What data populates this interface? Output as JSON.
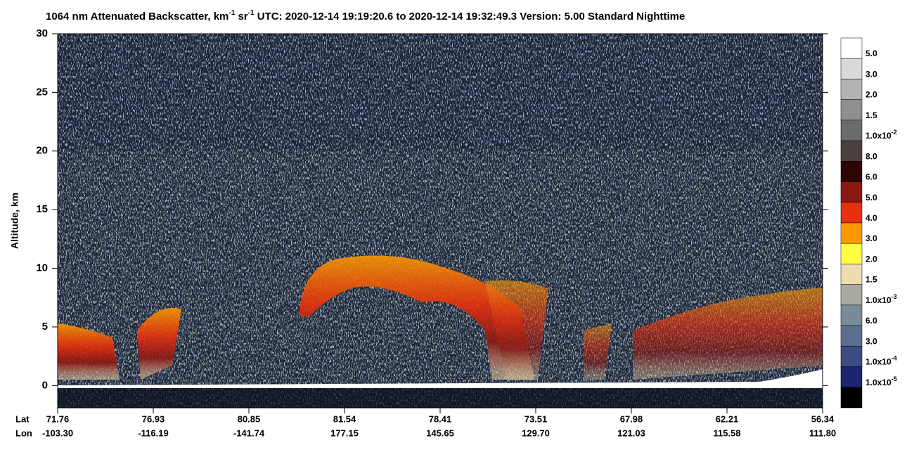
{
  "chart_data": {
    "type": "curtain",
    "title": [
      {
        "text": "1064 nm Attenuated Backscatter, km"
      },
      {
        "sup": "-1"
      },
      {
        "text": " sr"
      },
      {
        "sup": "-1"
      },
      {
        "text": "    UTC:  2020-12-14 19:19:20.6  to  2020-12-14 19:32:49.3    Version: 5.00  Standard  Nighttime"
      }
    ],
    "y_label": "Altitude, km",
    "ylim": [
      -1.9,
      30
    ],
    "yticks": [
      0,
      5,
      10,
      15,
      20,
      25,
      30
    ],
    "x_row_labels": [
      "Lat",
      "Lon"
    ],
    "lat": [
      "71.76",
      "76.93",
      "80.85",
      "81.54",
      "78.41",
      "73.51",
      "67.98",
      "62.21",
      "56.34"
    ],
    "lon": [
      "-103.30",
      "-116.19",
      "-141.74",
      "177.15",
      "145.65",
      "129.70",
      "121.03",
      "115.58",
      "111.80"
    ],
    "colorbar": {
      "colors": [
        "#ffffff",
        "#d9d9d9",
        "#b3b3b3",
        "#8f8f8f",
        "#6b6b6b",
        "#4a403d",
        "#2e0505",
        "#8c1812",
        "#e8300e",
        "#fa9a00",
        "#ffff40",
        "#eedcae",
        "#a9aba1",
        "#7b8a97",
        "#5a6f90",
        "#3a4e84",
        "#1e2470",
        "#000000"
      ],
      "labels": [
        {
          "label": "5.0"
        },
        {
          "label": "3.0"
        },
        {
          "label": "2.0"
        },
        {
          "label": "1.5"
        },
        {
          "label": "1.0x10",
          "exponent": "-2"
        },
        {
          "label": "8.0"
        },
        {
          "label": "6.0"
        },
        {
          "label": "5.0"
        },
        {
          "label": "4.0"
        },
        {
          "label": "3.0"
        },
        {
          "label": "2.0"
        },
        {
          "label": "1.5"
        },
        {
          "label": "1.0x10",
          "exponent": "-3"
        },
        {
          "label": "6.0"
        },
        {
          "label": "3.0"
        },
        {
          "label": "1.0x10",
          "exponent": "-4"
        },
        {
          "label": "1.0x10",
          "exponent": "-5"
        }
      ]
    }
  }
}
